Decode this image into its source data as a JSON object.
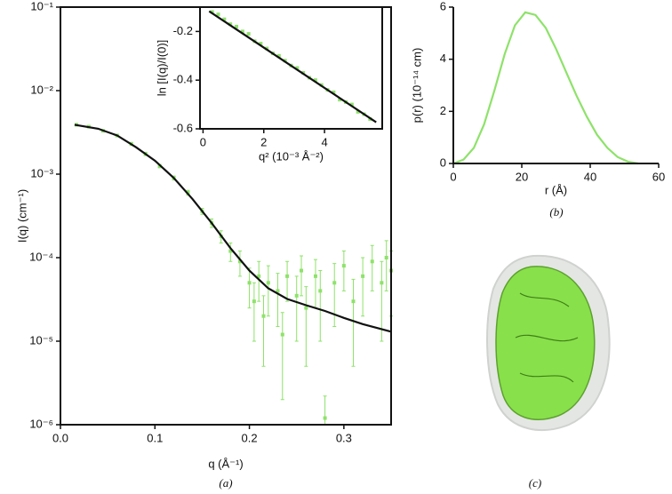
{
  "chart_data": [
    {
      "type": "scatter",
      "caption": "(a)",
      "x_label": "q (Å⁻¹)",
      "y_label": "I(q) (cm⁻¹)",
      "ylog": true,
      "xlim": [
        0,
        0.35
      ],
      "ylim": [
        1e-06,
        0.1
      ],
      "xticks": [
        {
          "value": 0,
          "label": "0.0"
        },
        0.1,
        0.2,
        0.3
      ],
      "yticks": [
        {
          "value": 1e-06,
          "label": "10⁻⁶"
        },
        {
          "value": 1e-05,
          "label": "10⁻⁵"
        },
        {
          "value": 0.0001,
          "label": "10⁻⁴"
        },
        {
          "value": 0.001,
          "label": "10⁻³"
        },
        {
          "value": 0.01,
          "label": "10⁻²"
        },
        {
          "value": 0.1,
          "label": "10⁻¹"
        }
      ],
      "points": {
        "color": "#8ee26a",
        "x": [
          0.017,
          0.03,
          0.045,
          0.06,
          0.075,
          0.09,
          0.105,
          0.12,
          0.135,
          0.15,
          0.16,
          0.17,
          0.18,
          0.19,
          0.2,
          0.205,
          0.21,
          0.215,
          0.22,
          0.23,
          0.235,
          0.24,
          0.25,
          0.255,
          0.26,
          0.27,
          0.275,
          0.28,
          0.29,
          0.3,
          0.31,
          0.32,
          0.33,
          0.34,
          0.345,
          0.35
        ],
        "values": [
          0.0039,
          0.0037,
          0.0033,
          0.0029,
          0.0023,
          0.00175,
          0.00125,
          0.0009,
          0.0006,
          0.00036,
          0.00026,
          0.00018,
          0.00012,
          9e-05,
          5e-05,
          3e-05,
          6e-05,
          2e-05,
          5e-05,
          4e-05,
          1.2e-05,
          6e-05,
          3.5e-05,
          7e-05,
          2.5e-05,
          6e-05,
          4e-05,
          1.2e-06,
          5e-05,
          8e-05,
          3e-05,
          6e-05,
          9e-05,
          5e-05,
          0.0001,
          7e-05
        ],
        "errors": [
          0.0001,
          0.0001,
          0.0001,
          0.0001,
          0.0001,
          8e-05,
          6e-05,
          5e-05,
          4e-05,
          3e-05,
          3e-05,
          3e-05,
          3e-05,
          3e-05,
          2.5e-05,
          2e-05,
          3e-05,
          1.5e-05,
          3e-05,
          2.5e-05,
          1e-05,
          3e-05,
          2.5e-05,
          3.5e-05,
          2e-05,
          3.5e-05,
          3e-05,
          1e-06,
          3.5e-05,
          4e-05,
          2.5e-05,
          4e-05,
          5e-05,
          4e-05,
          6e-05,
          5e-05
        ]
      },
      "fit": {
        "color": "#111111",
        "x": [
          0.015,
          0.04,
          0.06,
          0.08,
          0.1,
          0.12,
          0.14,
          0.16,
          0.18,
          0.2,
          0.22,
          0.24,
          0.26,
          0.28,
          0.3,
          0.32,
          0.35
        ],
        "values": [
          0.0039,
          0.0035,
          0.0029,
          0.0021,
          0.00145,
          0.0009,
          0.0005,
          0.00026,
          0.00013,
          7e-05,
          4.3e-05,
          3.2e-05,
          2.7e-05,
          2.3e-05,
          1.9e-05,
          1.6e-05,
          1.3e-05
        ]
      }
    },
    {
      "type": "scatter",
      "x_label": "q² (10⁻³ Å⁻²)",
      "y_label": "ln [I(q)/I(0)]",
      "ylog": false,
      "xlim": [
        -0.1,
        5.9
      ],
      "ylim": [
        -0.6,
        -0.1
      ],
      "xticks": [
        0,
        2,
        4
      ],
      "yticks": [
        -0.2,
        -0.4,
        -0.6
      ],
      "points": {
        "color": "#8ee26a",
        "x": [
          0.3,
          0.5,
          0.7,
          0.9,
          1.1,
          1.3,
          1.5,
          1.7,
          1.9,
          2.1,
          2.3,
          2.5,
          2.7,
          2.9,
          3.1,
          3.3,
          3.5,
          3.7,
          3.9,
          4.1,
          4.3,
          4.5,
          4.7,
          4.9,
          5.1,
          5.3,
          5.5
        ],
        "values": [
          -0.12,
          -0.13,
          -0.15,
          -0.17,
          -0.18,
          -0.2,
          -0.21,
          -0.24,
          -0.25,
          -0.27,
          -0.29,
          -0.3,
          -0.32,
          -0.34,
          -0.35,
          -0.37,
          -0.39,
          -0.4,
          -0.42,
          -0.44,
          -0.45,
          -0.48,
          -0.49,
          -0.5,
          -0.53,
          -0.54,
          -0.56
        ]
      },
      "fit": {
        "color": "#111111",
        "x": [
          0.2,
          5.7
        ],
        "values": [
          -0.117,
          -0.573
        ]
      }
    },
    {
      "type": "line",
      "caption": "(b)",
      "x_label": "r (Å)",
      "y_label": "p(r) (10⁻¹⁴ cm)",
      "ylog": false,
      "xlim": [
        0,
        60
      ],
      "ylim": [
        0,
        6
      ],
      "xticks": [
        0,
        20,
        40,
        60
      ],
      "yticks": [
        0,
        2,
        4,
        6
      ],
      "line": {
        "color": "#8ee26a",
        "x": [
          0,
          3,
          6,
          9,
          12,
          15,
          18,
          21,
          24,
          27,
          30,
          33,
          36,
          39,
          42,
          45,
          48,
          51,
          54
        ],
        "values": [
          0,
          0.15,
          0.6,
          1.5,
          2.8,
          4.2,
          5.3,
          5.8,
          5.7,
          5.2,
          4.4,
          3.5,
          2.6,
          1.8,
          1.1,
          0.6,
          0.25,
          0.07,
          0
        ]
      }
    }
  ],
  "figure_c": {
    "caption": "(c)"
  }
}
